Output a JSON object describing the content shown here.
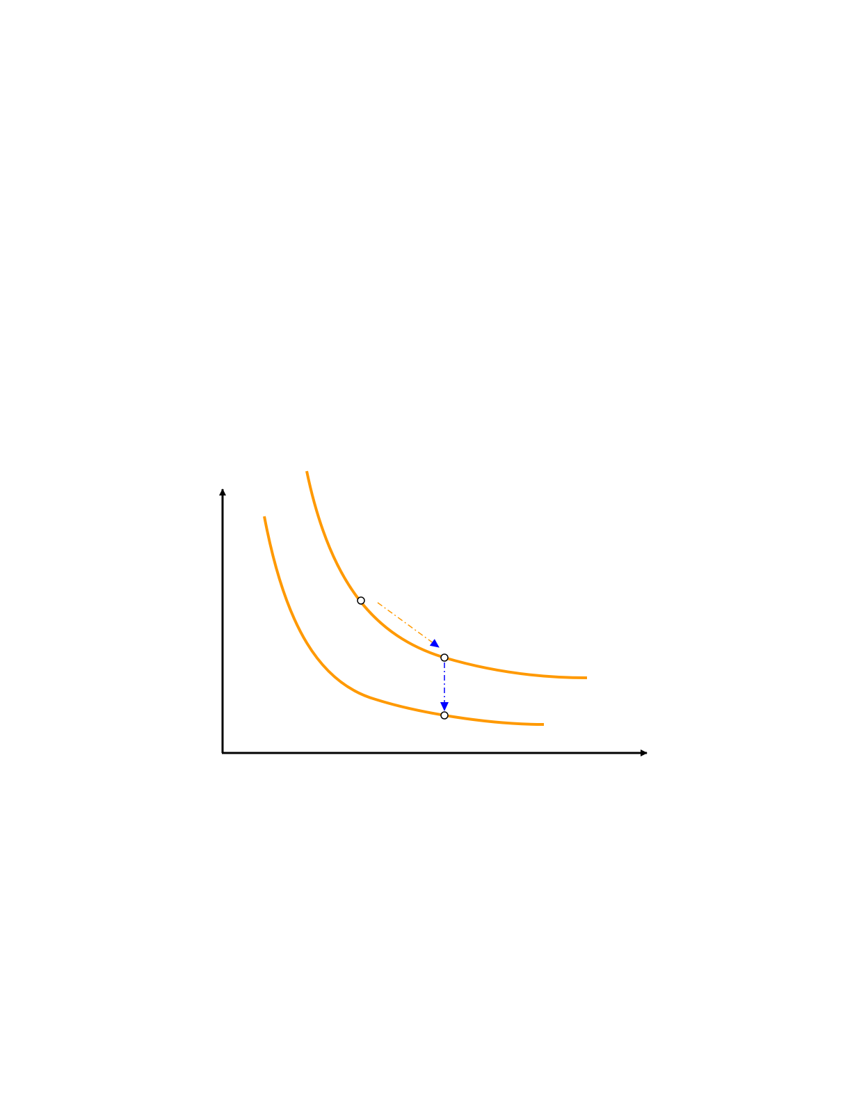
{
  "diagram": {
    "colors": {
      "curve": "#ff9900",
      "axis": "#000000",
      "arrow": "#0000ff",
      "point_fill": "#ffffff",
      "point_stroke": "#000000"
    },
    "curves": [
      {
        "id": "upper-curve"
      },
      {
        "id": "lower-curve"
      }
    ],
    "points": [
      {
        "id": "point-a",
        "on": "upper-curve"
      },
      {
        "id": "point-b",
        "on": "upper-curve"
      },
      {
        "id": "point-c",
        "on": "lower-curve"
      }
    ],
    "arrows": [
      {
        "from": "point-a",
        "to": "point-b",
        "style": "dash-dot"
      },
      {
        "from": "point-b",
        "to": "point-c",
        "style": "dash-dot"
      }
    ]
  }
}
